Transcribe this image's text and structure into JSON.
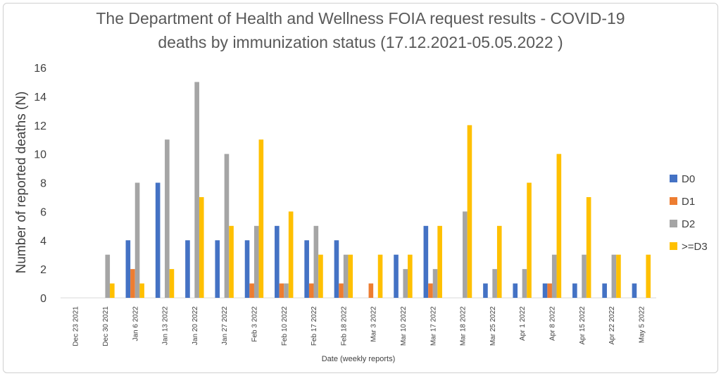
{
  "chart_data": {
    "type": "bar",
    "title_lines": [
      "The Department of Health and Wellness FOIA request results - COVID-19",
      "deaths by immunization status (17.12.2021-05.05.2022 )"
    ],
    "xlabel": "Date (weekly reports)",
    "ylabel": "Number of reported deaths (N)",
    "ylim": [
      0,
      16
    ],
    "yticks": [
      0,
      2,
      4,
      6,
      8,
      10,
      12,
      14,
      16
    ],
    "grid": false,
    "legend_position": "right",
    "categories": [
      "Dec 23 2021",
      "Dec 30 2021",
      "Jan 6 2022",
      "Jan 13 2022",
      "Jan 20 2022",
      "Jan 27 2022",
      "Feb 3 2022",
      "Feb 10 2022",
      "Feb 17 2022",
      "Feb 18 2022",
      "Mar 3 2022",
      "Mar 10 2022",
      "Mar 17 2022",
      "Mar 18 2022",
      "Mar 25 2022",
      "Apr 1 2022",
      "Apr 8 2022",
      "Apr 15 2022",
      "Apr 22 2022",
      "May 5 2022"
    ],
    "series": [
      {
        "name": "D0",
        "color": "#4472C4",
        "values": [
          0,
          0,
          4,
          8,
          4,
          4,
          4,
          5,
          4,
          4,
          0,
          3,
          5,
          0,
          1,
          1,
          1,
          1,
          1,
          1
        ]
      },
      {
        "name": "D1",
        "color": "#ED7D31",
        "values": [
          0,
          0,
          2,
          0,
          0,
          0,
          1,
          1,
          1,
          1,
          1,
          0,
          1,
          0,
          0,
          0,
          1,
          0,
          0,
          0
        ]
      },
      {
        "name": "D2",
        "color": "#A5A5A5",
        "values": [
          0,
          3,
          8,
          11,
          15,
          10,
          5,
          1,
          5,
          3,
          0,
          2,
          2,
          6,
          2,
          2,
          3,
          3,
          3,
          0
        ]
      },
      {
        "name": ">=D3",
        "color": "#FFC000",
        "values": [
          0,
          1,
          1,
          2,
          7,
          5,
          11,
          6,
          3,
          3,
          3,
          3,
          5,
          12,
          5,
          8,
          10,
          7,
          3,
          3
        ]
      }
    ]
  }
}
